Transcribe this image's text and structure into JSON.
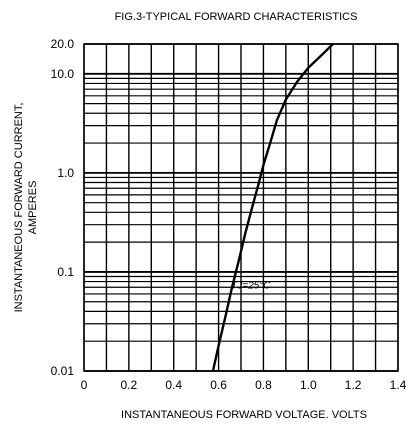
{
  "chart_data": {
    "type": "line",
    "title": "FIG.3-TYPICAL FORWARD CHARACTERISTICS",
    "xlabel": "INSTANTANEOUS FORWARD VOLTAGE. VOLTS",
    "ylabel_line1": "INSTANTANEOUS FORWARD CURRENT,",
    "ylabel_line2": "AMPERES",
    "x_scale": "linear",
    "y_scale": "log",
    "xlim": [
      0,
      1.4
    ],
    "ylim": [
      0.01,
      20
    ],
    "grid": true,
    "x_ticks": [
      {
        "value": 0,
        "label": "0"
      },
      {
        "value": 0.2,
        "label": "0.2"
      },
      {
        "value": 0.4,
        "label": "0.4"
      },
      {
        "value": 0.6,
        "label": "0.6"
      },
      {
        "value": 0.8,
        "label": "0.8"
      },
      {
        "value": 1.0,
        "label": "1.0"
      },
      {
        "value": 1.2,
        "label": "1.2"
      },
      {
        "value": 1.4,
        "label": "1.4"
      }
    ],
    "y_ticks": [
      {
        "value": 0.01,
        "label": "0.01"
      },
      {
        "value": 0.1,
        "label": "0.1"
      },
      {
        "value": 1.0,
        "label": "1.0"
      },
      {
        "value": 10.0,
        "label": "10.0"
      },
      {
        "value": 20.0,
        "label": "20.0"
      }
    ],
    "annotation": "TJ=25°C",
    "annotation_at": {
      "x": 0.79,
      "y": 0.075
    },
    "series": [
      {
        "points": [
          {
            "x": 0.575,
            "y": 0.01
          },
          {
            "x": 0.6,
            "y": 0.018
          },
          {
            "x": 0.63,
            "y": 0.035
          },
          {
            "x": 0.66,
            "y": 0.07
          },
          {
            "x": 0.69,
            "y": 0.13
          },
          {
            "x": 0.72,
            "y": 0.25
          },
          {
            "x": 0.75,
            "y": 0.45
          },
          {
            "x": 0.78,
            "y": 0.8
          },
          {
            "x": 0.8,
            "y": 1.2
          },
          {
            "x": 0.83,
            "y": 2.0
          },
          {
            "x": 0.86,
            "y": 3.4
          },
          {
            "x": 0.9,
            "y": 5.5
          },
          {
            "x": 0.95,
            "y": 8.3
          },
          {
            "x": 1.0,
            "y": 11.5
          },
          {
            "x": 1.06,
            "y": 15.5
          },
          {
            "x": 1.11,
            "y": 20.0
          }
        ]
      }
    ]
  }
}
